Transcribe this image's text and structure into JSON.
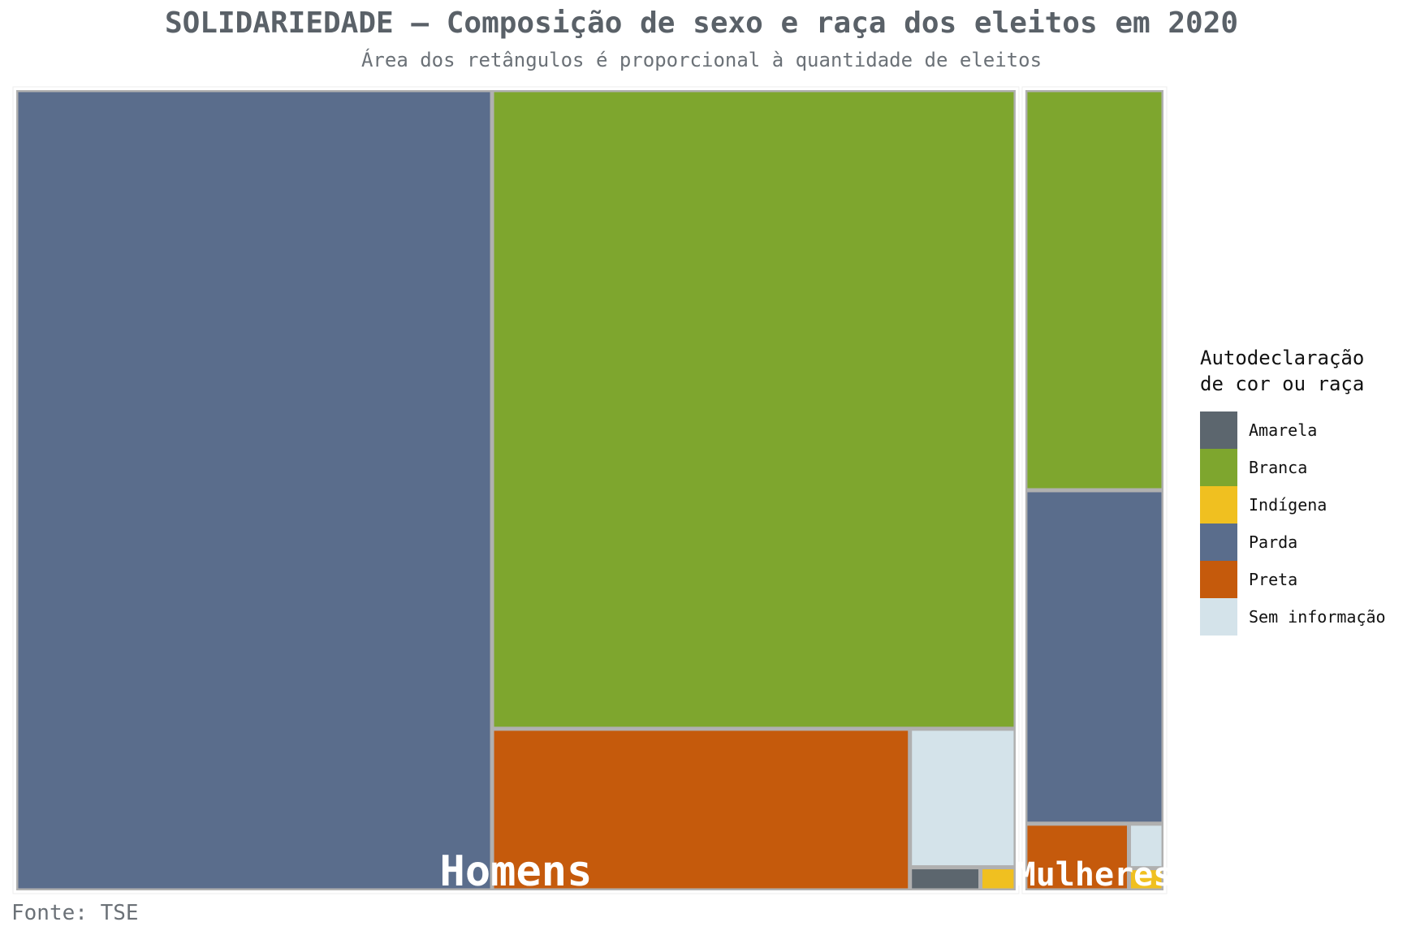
{
  "header": {
    "title": "SOLIDARIEDADE – Composição de sexo e raça dos eleitos em 2020",
    "subtitle": "Área dos retângulos é proporcional à quantidade de eleitos"
  },
  "legend": {
    "title_line1": "Autodeclaração",
    "title_line2": "de cor ou raça",
    "items": [
      {
        "label": "Amarela",
        "color": "#5c666e"
      },
      {
        "label": "Branca",
        "color": "#7ea62e"
      },
      {
        "label": "Indígena",
        "color": "#f0c020"
      },
      {
        "label": "Parda",
        "color": "#5a6d8c"
      },
      {
        "label": "Preta",
        "color": "#c55a0c"
      },
      {
        "label": "Sem informação",
        "color": "#d4e3ea"
      }
    ]
  },
  "footer": {
    "source": "Fonte: TSE"
  },
  "chart_data": {
    "type": "treemap",
    "groups": [
      {
        "name": "Homens",
        "values": [
          {
            "category": "Parda",
            "value": 468
          },
          {
            "category": "Branca",
            "value": 411
          },
          {
            "category": "Preta",
            "value": 83
          },
          {
            "category": "Sem informação",
            "value": 18
          },
          {
            "category": "Amarela",
            "value": 2
          },
          {
            "category": "Indígena",
            "value": 1
          }
        ]
      },
      {
        "name": "Mulheres",
        "values": [
          {
            "category": "Branca",
            "value": 72
          },
          {
            "category": "Parda",
            "value": 60
          },
          {
            "category": "Preta",
            "value": 9
          },
          {
            "category": "Sem informação",
            "value": 2
          },
          {
            "category": "Indígena",
            "value": 1
          }
        ]
      }
    ]
  }
}
